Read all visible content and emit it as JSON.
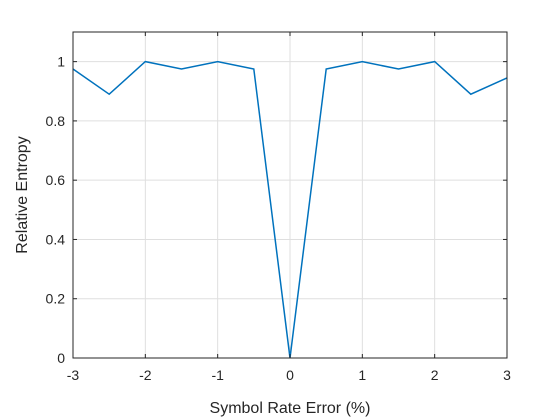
{
  "chart_data": {
    "type": "line",
    "title": "",
    "xlabel": "Symbol Rate Error (%)",
    "ylabel": "Relative Entropy",
    "xlim": [
      -3,
      3
    ],
    "ylim": [
      0,
      1.1
    ],
    "x_ticks": [
      -3,
      -2,
      -1,
      0,
      1,
      2,
      3
    ],
    "x_tick_labels": [
      "-3",
      "-2",
      "-1",
      "0",
      "1",
      "2",
      "3"
    ],
    "y_ticks": [
      0,
      0.2,
      0.4,
      0.6,
      0.8,
      1
    ],
    "y_tick_labels": [
      "0",
      "0.2",
      "0.4",
      "0.6",
      "0.8",
      "1"
    ],
    "grid": true,
    "legend": "none",
    "series": [
      {
        "color": "#0072BD",
        "x": [
          -3,
          -2.5,
          -2,
          -1.5,
          -1,
          -0.5,
          0,
          0.5,
          1,
          1.5,
          2,
          2.5,
          3
        ],
        "y": [
          0.975,
          0.89,
          1.0,
          0.975,
          1.0,
          0.975,
          0.0,
          0.975,
          1.0,
          0.975,
          1.0,
          0.89,
          0.945
        ]
      }
    ]
  }
}
